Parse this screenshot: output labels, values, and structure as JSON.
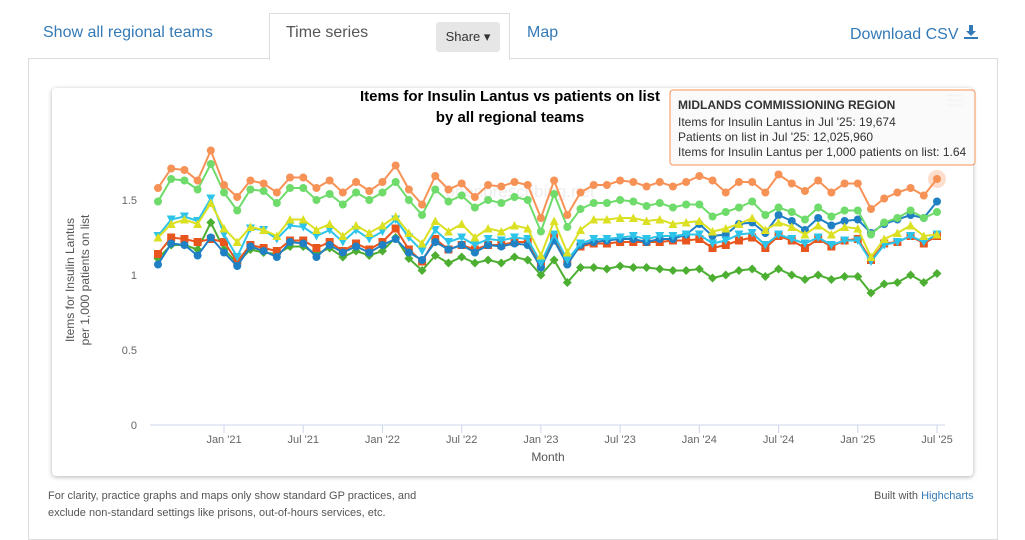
{
  "tabs": [
    "Show all regional teams",
    "Time series",
    "Map"
  ],
  "share": "Share",
  "download": "Download CSV",
  "chart_data": {
    "type": "line",
    "title": [
      "Items for Insulin Lantus vs patients on list",
      "by all regional teams"
    ],
    "y_label": [
      "Items for Insulin Lantus",
      "per 1,000 patients on list"
    ],
    "x_label": "Month",
    "categories": [
      null,
      null,
      null,
      null,
      null,
      "Jan '21",
      null,
      null,
      null,
      null,
      null,
      "Jul '21",
      null,
      null,
      null,
      null,
      null,
      "Jan '22",
      null,
      null,
      null,
      null,
      null,
      "Jul '22",
      null,
      null,
      null,
      null,
      null,
      "Jan '23",
      null,
      null,
      null,
      null,
      null,
      "Jul '23",
      null,
      null,
      null,
      null,
      null,
      "Jan '24",
      null,
      null,
      null,
      null,
      null,
      "Jul '24",
      null,
      null,
      null,
      null,
      null,
      "Jan '25",
      null,
      null,
      null,
      null,
      null,
      "Jul '25"
    ],
    "ylim": [
      0,
      1.9
    ],
    "yticks": [
      0,
      0.5,
      1,
      1.5
    ],
    "grid": false,
    "series": [
      {
        "color": "#4caf32",
        "marker": "diamond",
        "values": [
          1.11,
          1.2,
          1.2,
          1.17,
          1.35,
          1.17,
          1.08,
          1.17,
          1.15,
          1.14,
          1.19,
          1.19,
          1.14,
          1.18,
          1.12,
          1.16,
          1.13,
          1.16,
          1.25,
          1.11,
          1.03,
          1.13,
          1.08,
          1.12,
          1.08,
          1.1,
          1.08,
          1.12,
          1.1,
          1.0,
          1.1,
          0.95,
          1.05,
          1.05,
          1.04,
          1.06,
          1.05,
          1.05,
          1.04,
          1.03,
          1.03,
          1.04,
          0.98,
          1.0,
          1.03,
          1.04,
          0.99,
          1.04,
          1.0,
          0.97,
          1.0,
          0.97,
          0.99,
          0.99,
          0.88,
          0.94,
          0.95,
          1.0,
          0.95,
          1.01
        ]
      },
      {
        "color": "#e8561e",
        "marker": "square",
        "values": [
          1.14,
          1.25,
          1.24,
          1.22,
          1.24,
          1.22,
          1.09,
          1.2,
          1.18,
          1.16,
          1.23,
          1.23,
          1.18,
          1.22,
          1.16,
          1.21,
          1.17,
          1.22,
          1.31,
          1.17,
          1.09,
          1.24,
          1.17,
          1.2,
          1.17,
          1.2,
          1.2,
          1.22,
          1.22,
          1.07,
          1.25,
          1.09,
          1.19,
          1.21,
          1.21,
          1.22,
          1.22,
          1.22,
          1.22,
          1.23,
          1.23,
          1.24,
          1.18,
          1.2,
          1.23,
          1.25,
          1.18,
          1.26,
          1.23,
          1.18,
          1.24,
          1.19,
          1.23,
          1.24,
          1.1,
          1.21,
          1.22,
          1.26,
          1.21,
          1.26
        ]
      },
      {
        "color": "#1f80c4",
        "marker": "circle",
        "values": [
          1.07,
          1.21,
          1.2,
          1.13,
          1.25,
          1.15,
          1.06,
          1.19,
          1.16,
          1.12,
          1.22,
          1.21,
          1.12,
          1.2,
          1.15,
          1.19,
          1.15,
          1.2,
          1.24,
          1.15,
          1.1,
          1.22,
          1.17,
          1.2,
          1.15,
          1.2,
          1.19,
          1.21,
          1.2,
          1.05,
          1.23,
          1.07,
          1.2,
          1.22,
          1.23,
          1.24,
          1.24,
          1.22,
          1.24,
          1.24,
          1.27,
          1.34,
          1.26,
          1.27,
          1.34,
          1.35,
          1.28,
          1.4,
          1.36,
          1.3,
          1.38,
          1.33,
          1.36,
          1.37,
          1.28,
          1.34,
          1.37,
          1.4,
          1.38,
          1.49
        ]
      },
      {
        "color": "#2ec4ea",
        "marker": "triangle-down",
        "values": [
          1.26,
          1.37,
          1.39,
          1.36,
          1.51,
          1.27,
          1.12,
          1.31,
          1.3,
          1.24,
          1.33,
          1.32,
          1.26,
          1.3,
          1.22,
          1.3,
          1.24,
          1.29,
          1.37,
          1.25,
          1.16,
          1.3,
          1.22,
          1.25,
          1.2,
          1.24,
          1.23,
          1.25,
          1.24,
          1.08,
          1.27,
          1.1,
          1.21,
          1.24,
          1.24,
          1.25,
          1.26,
          1.24,
          1.26,
          1.26,
          1.27,
          1.27,
          1.21,
          1.23,
          1.27,
          1.28,
          1.2,
          1.27,
          1.24,
          1.21,
          1.25,
          1.2,
          1.23,
          1.23,
          1.09,
          1.2,
          1.22,
          1.26,
          1.22,
          1.27
        ]
      },
      {
        "color": "#dbe022",
        "marker": "triangle",
        "values": [
          1.25,
          1.34,
          1.37,
          1.34,
          1.48,
          1.31,
          1.22,
          1.32,
          1.3,
          1.26,
          1.37,
          1.37,
          1.3,
          1.34,
          1.26,
          1.33,
          1.28,
          1.33,
          1.39,
          1.28,
          1.21,
          1.36,
          1.29,
          1.34,
          1.25,
          1.31,
          1.29,
          1.33,
          1.31,
          1.13,
          1.36,
          1.15,
          1.3,
          1.37,
          1.37,
          1.38,
          1.38,
          1.36,
          1.37,
          1.34,
          1.35,
          1.36,
          1.29,
          1.31,
          1.34,
          1.38,
          1.3,
          1.35,
          1.32,
          1.27,
          1.33,
          1.27,
          1.32,
          1.31,
          1.12,
          1.24,
          1.28,
          1.33,
          1.26,
          1.27
        ]
      },
      {
        "color": "#6edb6a",
        "marker": "circle",
        "values": [
          1.49,
          1.64,
          1.63,
          1.57,
          1.74,
          1.55,
          1.43,
          1.57,
          1.56,
          1.48,
          1.58,
          1.58,
          1.5,
          1.54,
          1.47,
          1.55,
          1.5,
          1.55,
          1.62,
          1.5,
          1.4,
          1.57,
          1.49,
          1.53,
          1.45,
          1.5,
          1.48,
          1.52,
          1.5,
          1.29,
          1.54,
          1.32,
          1.44,
          1.48,
          1.48,
          1.5,
          1.49,
          1.46,
          1.48,
          1.45,
          1.47,
          1.47,
          1.39,
          1.42,
          1.45,
          1.49,
          1.4,
          1.45,
          1.42,
          1.37,
          1.45,
          1.39,
          1.43,
          1.43,
          1.27,
          1.35,
          1.38,
          1.43,
          1.38,
          1.42
        ]
      },
      {
        "name": "MIDLANDS COMMISSIONING REGION",
        "color": "#f79256",
        "marker": "circle",
        "values": [
          1.58,
          1.71,
          1.7,
          1.63,
          1.83,
          1.6,
          1.52,
          1.63,
          1.61,
          1.55,
          1.65,
          1.65,
          1.58,
          1.63,
          1.55,
          1.62,
          1.56,
          1.62,
          1.73,
          1.57,
          1.47,
          1.66,
          1.57,
          1.61,
          1.52,
          1.6,
          1.59,
          1.62,
          1.6,
          1.38,
          1.63,
          1.4,
          1.55,
          1.6,
          1.6,
          1.63,
          1.62,
          1.59,
          1.62,
          1.59,
          1.62,
          1.66,
          1.63,
          1.55,
          1.62,
          1.62,
          1.55,
          1.67,
          1.61,
          1.56,
          1.63,
          1.55,
          1.61,
          1.61,
          1.44,
          1.51,
          1.55,
          1.58,
          1.53,
          1.64
        ]
      }
    ]
  },
  "watermark": "openprescribing.net",
  "tooltip": {
    "lines": [
      "Items for Insulin Lantus in Jul '25: 19,674",
      "Patients on list in Jul '25: 12,025,960",
      "Items for Insulin Lantus per 1,000 patients on list: 1.64"
    ]
  },
  "footer": {
    "note": [
      "For clarity, practice graphs and maps only show standard GP practices, and",
      "exclude non-standard settings like prisons, out-of-hours services, etc."
    ],
    "credit": "Built with",
    "credit_link": "Highcharts"
  }
}
